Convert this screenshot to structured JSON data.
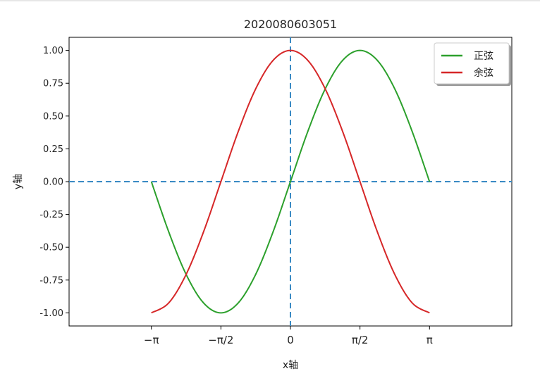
{
  "chart_data": {
    "type": "line",
    "title": "2020080603051",
    "xlabel": "x轴",
    "ylabel": "y轴",
    "xlim": [
      -5.0,
      5.0
    ],
    "ylim": [
      -1.1,
      1.1
    ],
    "x_ticks": [
      {
        "value": -3.14159,
        "label": "−π"
      },
      {
        "value": -1.5708,
        "label": "−π/2"
      },
      {
        "value": 0,
        "label": "0"
      },
      {
        "value": 1.5708,
        "label": "π/2"
      },
      {
        "value": 3.14159,
        "label": "π"
      }
    ],
    "y_ticks": [
      {
        "value": 1.0,
        "label": "1.00"
      },
      {
        "value": 0.75,
        "label": "0.75"
      },
      {
        "value": 0.5,
        "label": "0.50"
      },
      {
        "value": 0.25,
        "label": "0.25"
      },
      {
        "value": 0.0,
        "label": "0.00"
      },
      {
        "value": -0.25,
        "label": "-0.25"
      },
      {
        "value": -0.5,
        "label": "-0.50"
      },
      {
        "value": -0.75,
        "label": "-0.75"
      },
      {
        "value": -1.0,
        "label": "-1.00"
      }
    ],
    "reference_lines": [
      {
        "orientation": "horizontal",
        "value": 0,
        "style": "dashed",
        "color": "#3a8ac4"
      },
      {
        "orientation": "vertical",
        "value": 0,
        "style": "dashed",
        "color": "#3a8ac4"
      }
    ],
    "series": [
      {
        "name": "正弦",
        "color": "#2ca02c",
        "x": [
          -3.14159,
          -2.74889,
          -2.35619,
          -1.9635,
          -1.5708,
          -1.1781,
          -0.7854,
          -0.3927,
          0,
          0.3927,
          0.7854,
          1.1781,
          1.5708,
          1.9635,
          2.35619,
          2.74889,
          3.14159
        ],
        "y": [
          0.0,
          -0.383,
          -0.707,
          -0.924,
          -1.0,
          -0.924,
          -0.707,
          -0.383,
          0.0,
          0.383,
          0.707,
          0.924,
          1.0,
          0.924,
          0.707,
          0.383,
          0.0
        ]
      },
      {
        "name": "余弦",
        "color": "#d62728",
        "x": [
          -3.14159,
          -2.74889,
          -2.35619,
          -1.9635,
          -1.5708,
          -1.1781,
          -0.7854,
          -0.3927,
          0,
          0.3927,
          0.7854,
          1.1781,
          1.5708,
          1.9635,
          2.35619,
          2.74889,
          3.14159
        ],
        "y": [
          -1.0,
          -0.924,
          -0.707,
          -0.383,
          0.0,
          0.383,
          0.707,
          0.924,
          1.0,
          0.924,
          0.707,
          0.383,
          0.0,
          -0.383,
          -0.707,
          -0.924,
          -1.0
        ]
      }
    ],
    "legend": {
      "position": "top-right"
    },
    "grid": false
  }
}
